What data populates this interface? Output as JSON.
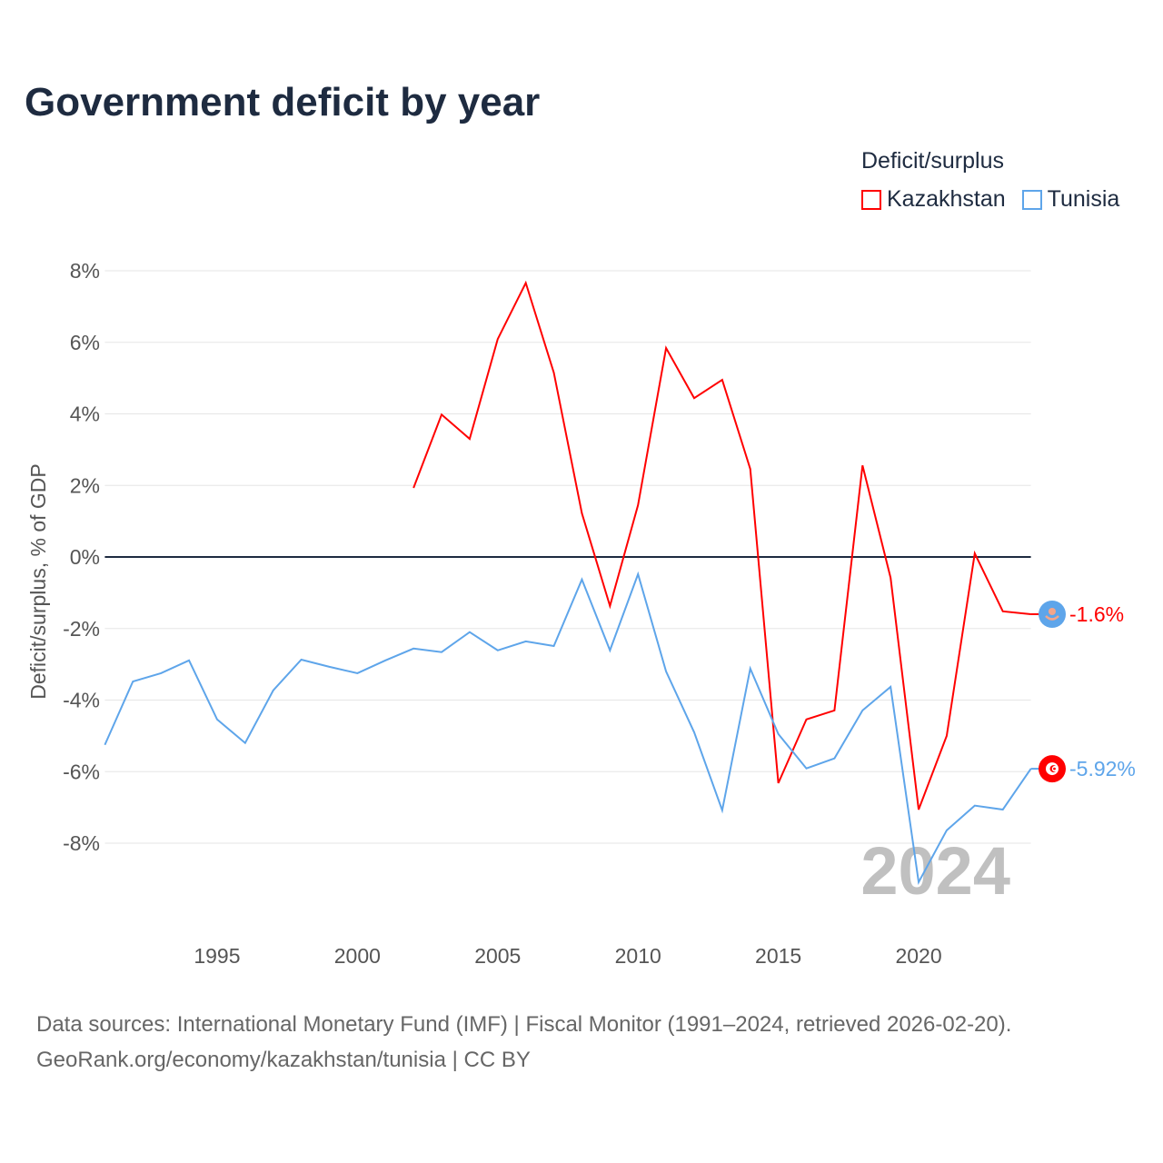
{
  "chart_data": {
    "type": "line",
    "title": "Government deficit by year",
    "xlabel": "",
    "ylabel": "Deficit/surplus, % of GDP",
    "xlim": [
      1991,
      2024
    ],
    "ylim": [
      -10,
      8
    ],
    "x_ticks": [
      1995,
      2000,
      2005,
      2010,
      2015,
      2020
    ],
    "y_ticks": [
      8,
      6,
      4,
      2,
      0,
      -2,
      -4,
      -6,
      -8
    ],
    "y_tick_labels": [
      "8%",
      "6%",
      "4%",
      "2%",
      "0%",
      "-2%",
      "-4%",
      "-6%",
      "-8%"
    ],
    "grid": true,
    "legend_title": "Deficit/surplus",
    "legend_position": "top-right",
    "year_watermark": "2024",
    "series": [
      {
        "name": "Kazakhstan",
        "color": "#ff0000",
        "end_label": "-1.6%",
        "x": [
          2002,
          2003,
          2004,
          2005,
          2006,
          2007,
          2008,
          2009,
          2010,
          2011,
          2012,
          2013,
          2014,
          2015,
          2016,
          2017,
          2018,
          2019,
          2020,
          2021,
          2022,
          2023,
          2024
        ],
        "values": [
          1.93,
          3.98,
          3.3,
          6.09,
          7.66,
          5.15,
          1.22,
          -1.37,
          1.45,
          5.84,
          4.44,
          4.95,
          2.46,
          -6.32,
          -4.54,
          -4.29,
          2.56,
          -0.58,
          -7.06,
          -5.0,
          0.1,
          -1.52,
          -1.6
        ]
      },
      {
        "name": "Tunisia",
        "color": "#5ea5ea",
        "end_label": "-5.92%",
        "x": [
          1991,
          1992,
          1993,
          1994,
          1995,
          1996,
          1997,
          1998,
          1999,
          2000,
          2001,
          2002,
          2003,
          2004,
          2005,
          2006,
          2007,
          2008,
          2009,
          2010,
          2011,
          2012,
          2013,
          2014,
          2015,
          2016,
          2017,
          2018,
          2019,
          2020,
          2021,
          2022,
          2023,
          2024
        ],
        "values": [
          -5.25,
          -3.48,
          -3.25,
          -2.89,
          -4.54,
          -5.2,
          -3.73,
          -2.87,
          -3.07,
          -3.25,
          -2.89,
          -2.56,
          -2.66,
          -2.1,
          -2.61,
          -2.36,
          -2.49,
          -0.63,
          -2.61,
          -0.48,
          -3.2,
          -4.9,
          -7.08,
          -3.12,
          -4.95,
          -5.91,
          -5.63,
          -4.29,
          -3.63,
          -9.09,
          -7.64,
          -6.95,
          -7.06,
          -5.92
        ]
      }
    ],
    "source_line1": "Data sources: International Monetary Fund (IMF) | Fiscal Monitor (1991–2024, retrieved 2026-02-20).",
    "source_line2": "GeoRank.org/economy/kazakhstan/tunisia | CC BY"
  }
}
